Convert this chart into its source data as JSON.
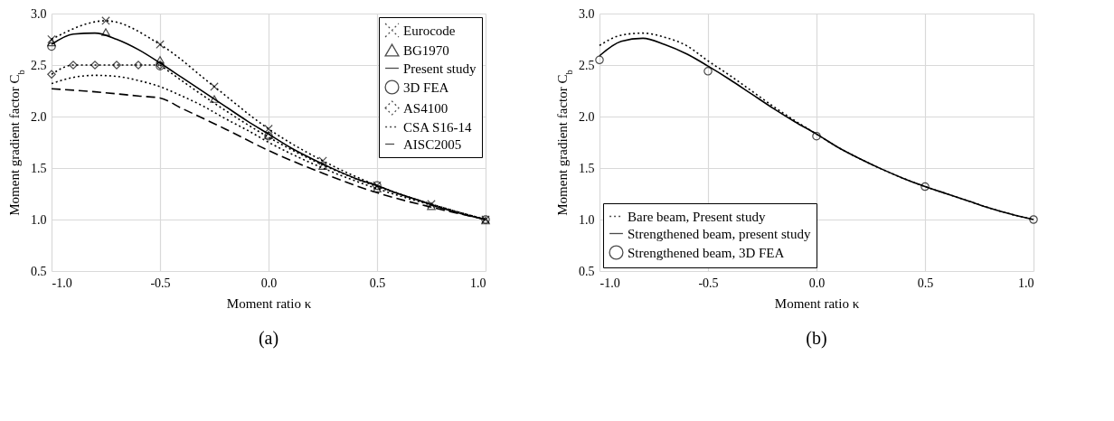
{
  "chart_data": [
    {
      "type": "line",
      "xlabel": "Moment ratio κ",
      "ylabel": "Moment gradient factor C$_{b}$",
      "annotations": [
        "(a)"
      ],
      "x": [
        -1,
        -0.9,
        -0.8,
        -0.7,
        -0.6,
        -0.5,
        -0.4,
        -0.3,
        -0.2,
        -0.1,
        0,
        0.1,
        0.2,
        0.3,
        0.4,
        0.5,
        0.6,
        0.7,
        0.8,
        0.9,
        1
      ],
      "xlim": [
        -1,
        1
      ],
      "xticks": [
        {
          "value": -1,
          "label": "-1.0"
        },
        {
          "value": -0.5,
          "label": "-0.5"
        },
        {
          "value": 0,
          "label": "0.0"
        },
        {
          "value": 0.5,
          "label": "0.5"
        },
        {
          "value": 1,
          "label": "1.0"
        }
      ],
      "ylim": [
        0.5,
        3
      ],
      "yticks": [
        {
          "value": 0.5,
          "label": "0.5"
        },
        {
          "value": 1,
          "label": "1.0"
        },
        {
          "value": 1.5,
          "label": "1.5"
        },
        {
          "value": 2,
          "label": "2.0"
        },
        {
          "value": 2.5,
          "label": "2.5"
        },
        {
          "value": 3,
          "label": "3.0"
        }
      ],
      "grid": true,
      "legend": "top right",
      "series": [
        {
          "name": "Eurocode",
          "color": "#000000",
          "marker": "cross",
          "line_style": "dotted",
          "x": [
            -1,
            -0.75,
            -0.5,
            -0.25,
            0,
            0.25,
            0.5,
            0.75,
            1
          ],
          "values": [
            2.75,
            2.93,
            2.7,
            2.29,
            1.88,
            1.57,
            1.33,
            1.15,
            1.0
          ]
        },
        {
          "name": "BG1970",
          "type": "scatter",
          "color": "#000000",
          "marker": "triangle",
          "x": [
            -1,
            -0.75,
            -0.5,
            -0.25,
            0,
            0.25,
            0.5,
            0.75,
            1
          ],
          "values": [
            2.72,
            2.82,
            2.55,
            2.17,
            1.82,
            1.52,
            1.3,
            1.13,
            0.99
          ]
        },
        {
          "name": "Present study",
          "color": "#000000",
          "marker": "none",
          "line_style": "solid",
          "values": [
            2.7,
            2.8,
            2.81,
            2.75,
            2.65,
            2.52,
            2.38,
            2.24,
            2.1,
            1.96,
            1.83,
            1.7,
            1.59,
            1.49,
            1.4,
            1.33,
            1.25,
            1.18,
            1.11,
            1.05,
            1.0
          ]
        },
        {
          "name": "3D FEA",
          "type": "scatter",
          "color": "#000000",
          "marker": "circle",
          "x": [
            -1,
            -0.5,
            0,
            0.5,
            1
          ],
          "values": [
            2.68,
            2.49,
            1.81,
            1.33,
            1.0
          ]
        },
        {
          "name": "AS4100",
          "color": "#000000",
          "marker": "diamond",
          "line_style": "dotted",
          "x": [
            -1,
            -0.9,
            -0.8,
            -0.7,
            -0.6,
            -0.5
          ],
          "values": [
            2.41,
            2.5,
            2.5,
            2.5,
            2.5,
            2.5
          ]
        },
        {
          "color": "#000000",
          "marker": "none",
          "line_style": "dotted",
          "x": [
            -0.5,
            -0.25,
            0,
            0.25,
            0.5,
            0.75,
            1
          ],
          "values": [
            2.5,
            2.13,
            1.8,
            1.53,
            1.32,
            1.15,
            1.0
          ]
        },
        {
          "name": "CSA S16-14",
          "color": "#000000",
          "marker": "none",
          "line_style": "dotted",
          "x": [
            -1,
            -0.9,
            -0.8,
            -0.7,
            -0.6,
            -0.5,
            -0.4,
            -0.3,
            -0.2,
            -0.1,
            0,
            0.25,
            0.5,
            0.75,
            1
          ],
          "values": [
            2.32,
            2.38,
            2.4,
            2.39,
            2.35,
            2.29,
            2.2,
            2.1,
            1.98,
            1.87,
            1.75,
            1.5,
            1.3,
            1.14,
            1.0
          ]
        },
        {
          "name": "AISC2005",
          "color": "#000000",
          "marker": "none",
          "line_style": "dashed",
          "x": [
            -1,
            -0.8,
            -0.6,
            -0.5,
            -0.4,
            -0.2,
            0,
            0.25,
            0.5,
            0.75,
            1
          ],
          "values": [
            2.27,
            2.24,
            2.2,
            2.18,
            2.08,
            1.88,
            1.67,
            1.45,
            1.26,
            1.12,
            1.0
          ]
        }
      ]
    },
    {
      "type": "line",
      "xlabel": "Moment ratio κ",
      "ylabel": "Moment gradient factor C$_{b}$",
      "annotations": [
        "(b)"
      ],
      "x": [
        -1,
        -0.9,
        -0.8,
        -0.7,
        -0.6,
        -0.5,
        -0.4,
        -0.3,
        -0.2,
        -0.1,
        0,
        0.1,
        0.2,
        0.3,
        0.4,
        0.5,
        0.6,
        0.7,
        0.8,
        0.9,
        1
      ],
      "xlim": [
        -1,
        1
      ],
      "xticks": [
        {
          "value": -1,
          "label": "-1.0"
        },
        {
          "value": -0.5,
          "label": "-0.5"
        },
        {
          "value": 0,
          "label": "0.0"
        },
        {
          "value": 0.5,
          "label": "0.5"
        },
        {
          "value": 1,
          "label": "1.0"
        }
      ],
      "ylim": [
        0.5,
        3
      ],
      "yticks": [
        {
          "value": 0.5,
          "label": "0.5"
        },
        {
          "value": 1,
          "label": "1.0"
        },
        {
          "value": 1.5,
          "label": "1.5"
        },
        {
          "value": 2,
          "label": "2.0"
        },
        {
          "value": 2.5,
          "label": "2.5"
        },
        {
          "value": 3,
          "label": "3.0"
        }
      ],
      "grid": true,
      "legend": "bottom left",
      "series": [
        {
          "name": "Bare beam, Present study",
          "color": "#000000",
          "marker": "none",
          "line_style": "dotted",
          "values": [
            2.69,
            2.79,
            2.81,
            2.77,
            2.69,
            2.54,
            2.4,
            2.25,
            2.1,
            1.96,
            1.83,
            1.7,
            1.59,
            1.49,
            1.4,
            1.32,
            1.25,
            1.18,
            1.11,
            1.05,
            1.0
          ]
        },
        {
          "name": "Strengthened beam, present study",
          "color": "#000000",
          "marker": "none",
          "line_style": "solid",
          "values": [
            2.59,
            2.73,
            2.76,
            2.7,
            2.61,
            2.49,
            2.36,
            2.22,
            2.08,
            1.95,
            1.83,
            1.7,
            1.59,
            1.49,
            1.4,
            1.32,
            1.25,
            1.18,
            1.11,
            1.05,
            1.0
          ]
        },
        {
          "name": "Strengthened beam, 3D FEA",
          "type": "scatter",
          "color": "#000000",
          "marker": "circle",
          "x": [
            -1,
            -0.5,
            0,
            0.5,
            1
          ],
          "values": [
            2.55,
            2.44,
            1.81,
            1.32,
            1.0
          ]
        }
      ]
    }
  ]
}
